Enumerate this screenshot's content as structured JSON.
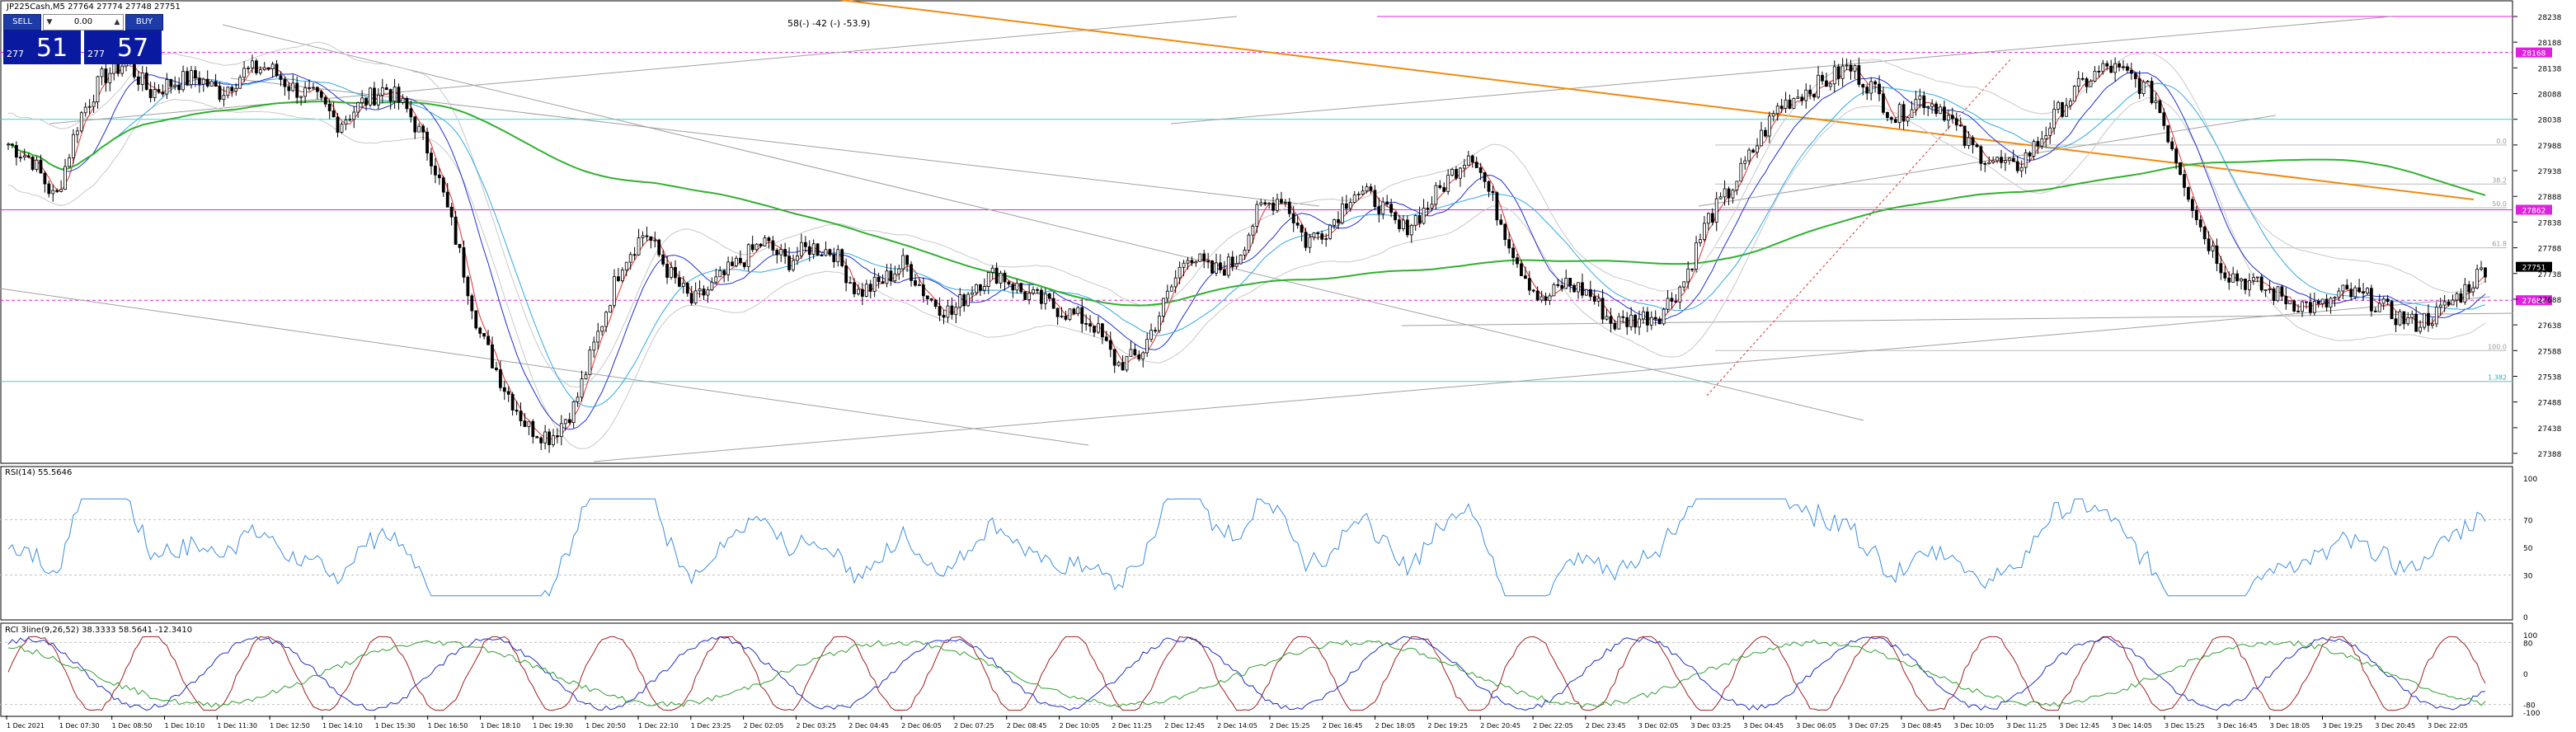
{
  "header": {
    "title": "JP225Cash,M5  27764 27774 27748 27751"
  },
  "trade_panel": {
    "sell_label": "SELL",
    "buy_label": "BUY",
    "lot": "0.00",
    "sell_price_minor": "277",
    "sell_price_major": "51",
    "buy_price_minor": "277",
    "buy_price_major": "57"
  },
  "annotation": "58(-) -42 (-) -53.9)",
  "chart_data": [
    {
      "type": "candlestick",
      "title": "JP225Cash,M5",
      "ylim": [
        27388,
        28238
      ],
      "yticks": [
        28238,
        28188,
        28138,
        28088,
        28038,
        27988,
        27938,
        27888,
        27838,
        27788,
        27738,
        27688,
        27638,
        27588,
        27538,
        27488,
        27438,
        27388
      ],
      "current_price": 27751,
      "xticks": [
        "1 Dec 2021",
        "1 Dec 07:30",
        "1 Dec 08:50",
        "1 Dec 10:10",
        "1 Dec 11:30",
        "1 Dec 12:50",
        "1 Dec 14:10",
        "1 Dec 15:30",
        "1 Dec 16:50",
        "1 Dec 18:10",
        "1 Dec 19:30",
        "1 Dec 20:50",
        "1 Dec 22:10",
        "1 Dec 23:25",
        "2 Dec 02:05",
        "2 Dec 03:25",
        "2 Dec 04:45",
        "2 Dec 06:05",
        "2 Dec 07:25",
        "2 Dec 08:45",
        "2 Dec 10:05",
        "2 Dec 11:25",
        "2 Dec 12:45",
        "2 Dec 14:05",
        "2 Dec 15:25",
        "2 Dec 16:45",
        "2 Dec 18:05",
        "2 Dec 19:25",
        "2 Dec 20:45",
        "2 Dec 22:05",
        "2 Dec 23:45",
        "3 Dec 02:05",
        "3 Dec 03:25",
        "3 Dec 04:45",
        "3 Dec 06:05",
        "3 Dec 07:25",
        "3 Dec 08:45",
        "3 Dec 10:05",
        "3 Dec 11:25",
        "3 Dec 12:45",
        "3 Dec 14:05",
        "3 Dec 15:25",
        "3 Dec 16:45",
        "3 Dec 18:05",
        "3 Dec 19:25",
        "3 Dec 20:45",
        "3 Dec 22:05"
      ],
      "close_path": [
        27990,
        27960,
        27880,
        28040,
        28120,
        28150,
        28090,
        28110,
        28120,
        28090,
        28130,
        28140,
        28100,
        28080,
        28030,
        28070,
        28100,
        28050,
        27960,
        27800,
        27620,
        27520,
        27440,
        27420,
        27480,
        27620,
        27760,
        27820,
        27740,
        27680,
        27720,
        27760,
        27800,
        27760,
        27790,
        27780,
        27700,
        27720,
        27760,
        27690,
        27660,
        27720,
        27740,
        27700,
        27680,
        27660,
        27640,
        27560,
        27580,
        27680,
        27780,
        27740,
        27760,
        27860,
        27890,
        27800,
        27830,
        27900,
        27880,
        27820,
        27860,
        27920,
        27980,
        27870,
        27760,
        27680,
        27720,
        27700,
        27640,
        27650,
        27660,
        27720,
        27840,
        27900,
        27980,
        28060,
        28090,
        28110,
        28140,
        28100,
        28040,
        28080,
        28060,
        27990,
        27960,
        27940,
        27990,
        28060,
        28110,
        28140,
        28120,
        28080,
        27950,
        27820,
        27740,
        27720,
        27700,
        27680,
        27670,
        27700,
        27690,
        27660,
        27640,
        27660,
        27700,
        27751
      ],
      "horizontal_lines": [
        28238,
        28168,
        28038,
        27862,
        27686,
        27528
      ],
      "fib_labels": [
        "0.0",
        "38.2",
        "50.0",
        "61.8",
        "100.0",
        "1.382"
      ],
      "fib_values": [
        27988,
        27912,
        27866,
        27788,
        27588,
        27528
      ],
      "level_labels": [
        "28168",
        "27862",
        "27686",
        "27751"
      ]
    },
    {
      "type": "line",
      "title": "RSI(14) 55.5646",
      "ylim": [
        0,
        100
      ],
      "yticks": [
        100,
        70,
        50,
        30,
        0
      ],
      "levels": [
        70,
        30
      ]
    },
    {
      "type": "line",
      "title": "RCI 3line(9,26,52) 38.3333 58.5641 -12.3410",
      "ylim": [
        -100,
        100
      ],
      "yticks": [
        100,
        80,
        0,
        -80,
        -100
      ],
      "levels": [
        80,
        -80
      ]
    }
  ]
}
